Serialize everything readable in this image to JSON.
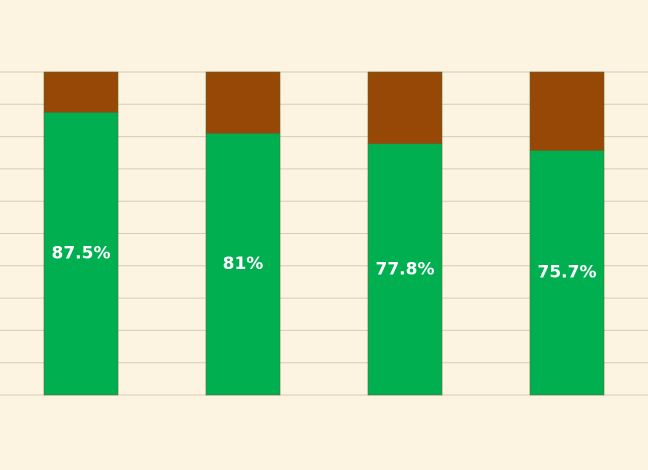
{
  "chart_data": {
    "type": "stacked_bar",
    "categories": [
      null,
      null,
      null,
      null
    ],
    "series": [
      {
        "color": "#00b050",
        "values": [
          87.5,
          81,
          77.8,
          75.7
        ],
        "value_labels": [
          "87.5%",
          "81%",
          "77.8%",
          "75.7%"
        ]
      },
      {
        "color": "#974706",
        "values": [
          12.5,
          19,
          22.2,
          24.3
        ]
      }
    ],
    "ylim": [
      0,
      100
    ],
    "yticks": [
      0,
      10,
      20,
      30,
      40,
      50,
      60,
      70,
      80,
      90,
      100
    ],
    "grid": true,
    "tick_labels": false
  }
}
